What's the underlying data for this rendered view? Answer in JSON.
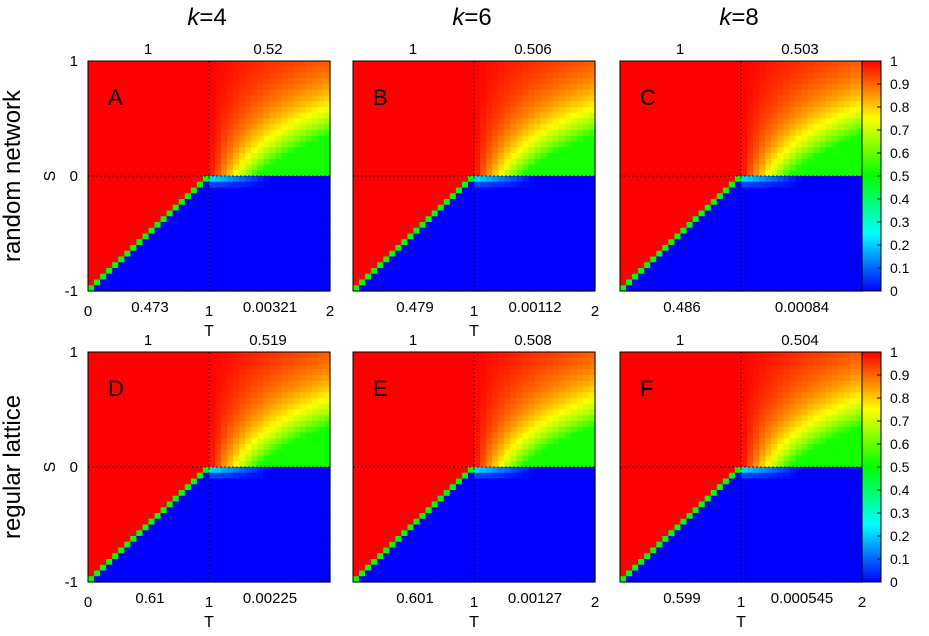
{
  "figure": {
    "columns": [
      "k=4",
      "k=6",
      "k=8"
    ],
    "column_parts": [
      {
        "var": "k",
        "rest": "=4"
      },
      {
        "var": "k",
        "rest": "=6"
      },
      {
        "var": "k",
        "rest": "=8"
      }
    ],
    "rows": [
      "random network",
      "regular lattice"
    ]
  },
  "chart_data": [
    {
      "type": "heatmap",
      "panel": "A",
      "row": 0,
      "col": 0,
      "xlabel": "T",
      "ylabel": "S",
      "xlim": [
        0,
        2
      ],
      "ylim": [
        -1,
        1
      ],
      "x_ticks": [
        "0",
        "1",
        "2"
      ],
      "y_ticks": [
        "-1",
        "0",
        "1"
      ],
      "show_xlabel": true,
      "show_ylabel": true,
      "quadrant_values": {
        "top_left": "1",
        "top_right": "0.52",
        "bottom_left": "0.473",
        "bottom_right": "0.00321"
      }
    },
    {
      "type": "heatmap",
      "panel": "B",
      "row": 0,
      "col": 1,
      "xlabel": "T",
      "ylabel": "",
      "xlim": [
        0,
        2
      ],
      "ylim": [
        -1,
        1
      ],
      "x_ticks": [
        "",
        "1",
        "2"
      ],
      "y_ticks": [],
      "show_xlabel": true,
      "show_ylabel": false,
      "quadrant_values": {
        "top_left": "1",
        "top_right": "0.506",
        "bottom_left": "0.479",
        "bottom_right": "0.00112"
      }
    },
    {
      "type": "heatmap",
      "panel": "C",
      "row": 0,
      "col": 2,
      "xlabel": "",
      "ylabel": "",
      "xlim": [
        0,
        2
      ],
      "ylim": [
        -1,
        1
      ],
      "x_ticks": [],
      "y_ticks": [],
      "show_xlabel": false,
      "show_ylabel": false,
      "quadrant_values": {
        "top_left": "1",
        "top_right": "0.503",
        "bottom_left": "0.486",
        "bottom_right": "0.00084"
      }
    },
    {
      "type": "heatmap",
      "panel": "D",
      "row": 1,
      "col": 0,
      "xlabel": "T",
      "ylabel": "S",
      "xlim": [
        0,
        2
      ],
      "ylim": [
        -1,
        1
      ],
      "x_ticks": [
        "0",
        "1",
        ""
      ],
      "y_ticks": [
        "-1",
        "0",
        "1"
      ],
      "show_xlabel": true,
      "show_ylabel": true,
      "quadrant_values": {
        "top_left": "1",
        "top_right": "0.519",
        "bottom_left": "0.61",
        "bottom_right": "0.00225"
      }
    },
    {
      "type": "heatmap",
      "panel": "E",
      "row": 1,
      "col": 1,
      "xlabel": "T",
      "ylabel": "",
      "xlim": [
        0,
        2
      ],
      "ylim": [
        -1,
        1
      ],
      "x_ticks": [
        "",
        "1",
        "2"
      ],
      "y_ticks": [],
      "show_xlabel": true,
      "show_ylabel": false,
      "quadrant_values": {
        "top_left": "1",
        "top_right": "0.508",
        "bottom_left": "0.601",
        "bottom_right": "0.00127"
      }
    },
    {
      "type": "heatmap",
      "panel": "F",
      "row": 1,
      "col": 2,
      "xlabel": "T",
      "ylabel": "",
      "xlim": [
        0,
        2
      ],
      "ylim": [
        -1,
        1
      ],
      "x_ticks": [
        "",
        "1",
        "2"
      ],
      "y_ticks": [],
      "show_xlabel": true,
      "show_ylabel": false,
      "quadrant_values": {
        "top_left": "1",
        "top_right": "0.504",
        "bottom_left": "0.599",
        "bottom_right": "0.000545"
      }
    }
  ],
  "colorbar": {
    "range": [
      0,
      1
    ],
    "ticks": [
      "1",
      "0.9",
      "0.8",
      "0.7",
      "0.6",
      "0.5",
      "0.4",
      "0.3",
      "0.2",
      "0.1",
      "0"
    ],
    "colors": [
      "#0000ff",
      "#00ffff",
      "#00ff00",
      "#ffff00",
      "#ff0000"
    ]
  }
}
